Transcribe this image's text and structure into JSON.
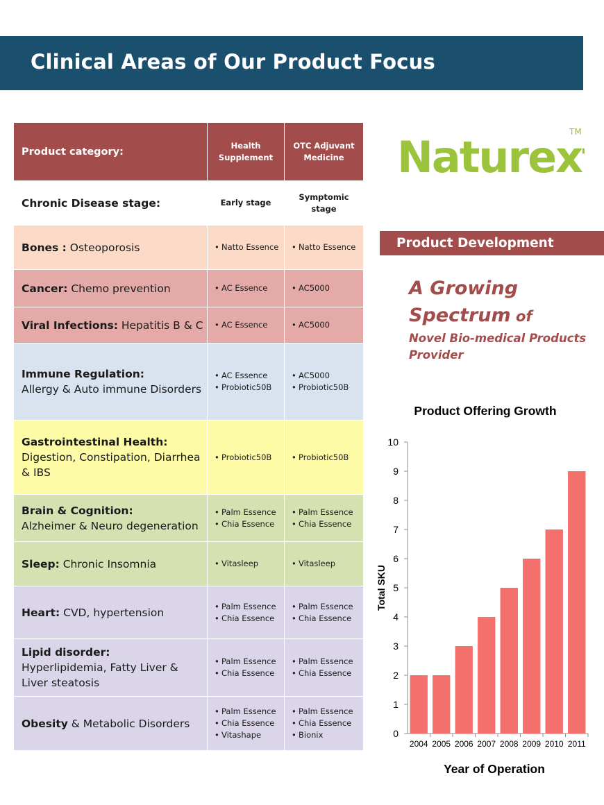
{
  "header": {
    "title": "Clinical Areas of Our Product Focus"
  },
  "table": {
    "head": {
      "category_label": "Product category:",
      "col1": "Health Supplement",
      "col2": "OTC Adjuvant Medicine"
    },
    "stage": {
      "label": "Chronic Disease stage:",
      "col1": "Early stage",
      "col2": "Symptomic stage"
    },
    "rows": [
      {
        "title": "Bones :",
        "detail": "  Osteoporosis",
        "col1": [
          "Natto Essence"
        ],
        "col2": [
          "Natto Essence"
        ]
      },
      {
        "title": "Cancer:",
        "detail": "   Chemo prevention",
        "col1": [
          "AC Essence"
        ],
        "col2": [
          "AC5000"
        ]
      },
      {
        "title": "Viral  Infections:",
        "detail": " Hepatitis  B & C",
        "col1": [
          "AC Essence"
        ],
        "col2": [
          "AC5000"
        ]
      },
      {
        "title": "Immune Regulation:",
        "detail": "Allergy & Auto immune Disorders",
        "col1": [
          "AC Essence",
          "Probiotic50B"
        ],
        "col2": [
          "AC5000",
          "Probiotic50B"
        ]
      },
      {
        "title": "Gastrointestinal Health:",
        "detail": "Digestion, Constipation, Diarrhea & IBS",
        "col1": [
          "Probiotic50B"
        ],
        "col2": [
          "Probiotic50B"
        ]
      },
      {
        "title": "Brain & Cognition:",
        "detail": "Alzheimer & Neuro degeneration",
        "col1": [
          "Palm Essence",
          "Chia Essence"
        ],
        "col2": [
          "Palm Essence",
          "Chia Essence"
        ]
      },
      {
        "title": "Sleep:",
        "detail": "  Chronic Insomnia",
        "col1": [
          "Vitasleep"
        ],
        "col2": [
          "Vitasleep"
        ]
      },
      {
        "title": "Heart:",
        "detail": "   CVD, hypertension",
        "col1": [
          "Palm Essence",
          "Chia Essence"
        ],
        "col2": [
          "Palm Essence",
          "Chia Essence"
        ]
      },
      {
        "title": "Lipid disorder:",
        "detail": "Hyperlipidemia, Fatty Liver & Liver steatosis",
        "col1": [
          "Palm Essence",
          "Chia Essence"
        ],
        "col2": [
          "Palm Essence",
          "Chia Essence"
        ]
      },
      {
        "title": "Obesity",
        "detail": " & Metabolic Disorders",
        "col1": [
          "Palm Essence",
          "Chia Essence",
          "Vitashape"
        ],
        "col2": [
          "Palm Essence",
          "Chia Essence",
          "Bionix"
        ]
      }
    ]
  },
  "logo": {
    "text": "Naturext",
    "tm": "TM"
  },
  "side": {
    "history_label": "Product Development History",
    "headline_1": "A Growing",
    "headline_2a": "Spectrum",
    "headline_2b": " of",
    "headline_3": "Novel Bio-medical Products Provider"
  },
  "colors": {
    "title_bar": "#1b4f6e",
    "accent": "#a24c4c",
    "bar": "#f4706d",
    "logo_green": "#9bc33c"
  },
  "chart_data": {
    "type": "bar",
    "title": "Product Offering Growth",
    "xlabel": "Year of Operation",
    "ylabel": "Total SKU",
    "categories": [
      "2004",
      "2005",
      "2006",
      "2007",
      "2008",
      "2009",
      "2010",
      "2011"
    ],
    "values": [
      2,
      2,
      3,
      4,
      5,
      6,
      7,
      9
    ],
    "ylim": [
      0,
      10
    ],
    "yticks": [
      "0",
      "1",
      "2",
      "3",
      "4",
      "5",
      "6",
      "7",
      "8",
      "9",
      "10"
    ],
    "grid": false
  }
}
